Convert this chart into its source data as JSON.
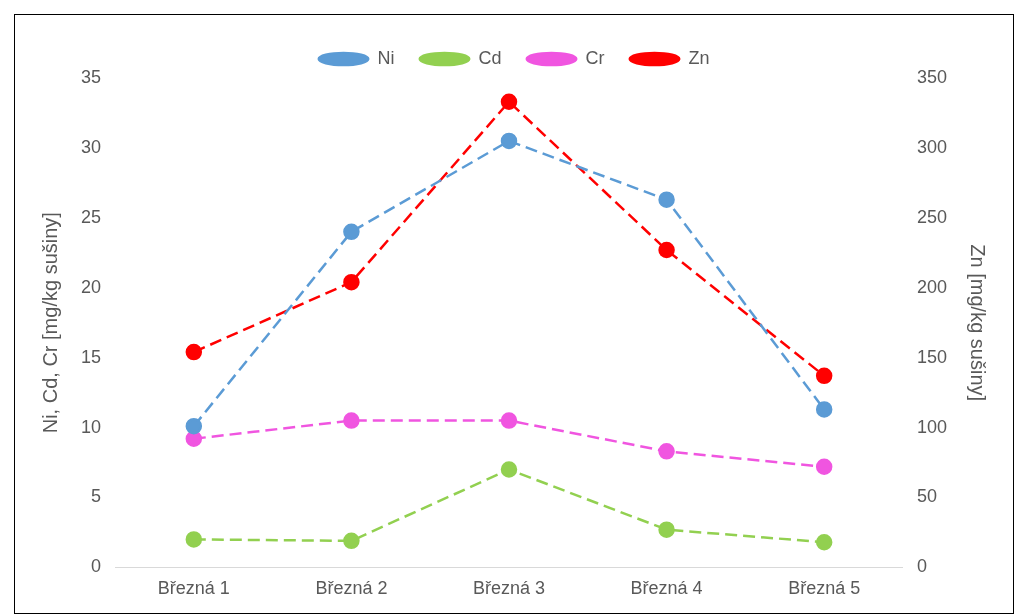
{
  "chart_data": {
    "type": "line",
    "categories": [
      "Březná 1",
      "Březná 2",
      "Březná 3",
      "Březná 4",
      "Březná 5"
    ],
    "ylabel": "Ni, Cd, Cr [mg/kg sušiny]",
    "y2label": "Zn [mg/kg sušiny]",
    "ylim": [
      0,
      35
    ],
    "yticks": [
      0,
      5,
      10,
      15,
      20,
      25,
      30,
      35
    ],
    "y2lim": [
      0,
      350
    ],
    "y2ticks": [
      0,
      50,
      100,
      150,
      200,
      250,
      300,
      350
    ],
    "legend": "top",
    "marker": "circle",
    "line_style": "dashed",
    "grid": false,
    "series": [
      {
        "name": "Ni",
        "color": "#5b9bd5",
        "values": [
          10.1,
          24,
          30.5,
          26.3,
          11.3
        ]
      },
      {
        "name": "Cd",
        "color": "#92d050",
        "values": [
          2,
          1.9,
          7,
          2.7,
          1.8
        ]
      },
      {
        "name": "Cr",
        "color": "#f055e0",
        "values": [
          9.2,
          10.5,
          10.5,
          8.3,
          7.2
        ]
      },
      {
        "name": "Zn",
        "color": "#ff0000",
        "axis": "y2",
        "values": [
          154,
          204,
          333,
          227,
          137
        ]
      }
    ]
  }
}
